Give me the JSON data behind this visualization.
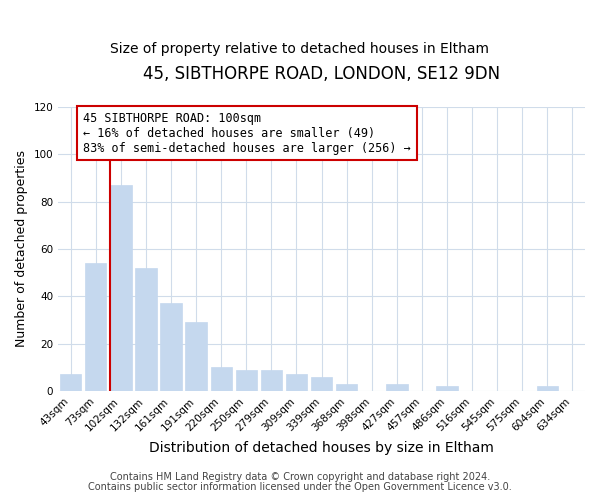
{
  "title": "45, SIBTHORPE ROAD, LONDON, SE12 9DN",
  "subtitle": "Size of property relative to detached houses in Eltham",
  "xlabel": "Distribution of detached houses by size in Eltham",
  "ylabel": "Number of detached properties",
  "bar_labels": [
    "43sqm",
    "73sqm",
    "102sqm",
    "132sqm",
    "161sqm",
    "191sqm",
    "220sqm",
    "250sqm",
    "279sqm",
    "309sqm",
    "339sqm",
    "368sqm",
    "398sqm",
    "427sqm",
    "457sqm",
    "486sqm",
    "516sqm",
    "545sqm",
    "575sqm",
    "604sqm",
    "634sqm"
  ],
  "bar_values": [
    7,
    54,
    87,
    52,
    37,
    29,
    10,
    9,
    9,
    7,
    6,
    3,
    0,
    3,
    0,
    2,
    0,
    0,
    0,
    2,
    0
  ],
  "bar_color": "#c5d8ee",
  "bar_edge_color": "#c5d8ee",
  "vline_color": "#cc0000",
  "annotation_line1": "45 SIBTHORPE ROAD: 100sqm",
  "annotation_line2": "← 16% of detached houses are smaller (49)",
  "annotation_line3": "83% of semi-detached houses are larger (256) →",
  "annotation_box_edgecolor": "#cc0000",
  "annotation_box_facecolor": "#ffffff",
  "ylim": [
    0,
    120
  ],
  "yticks": [
    0,
    20,
    40,
    60,
    80,
    100,
    120
  ],
  "footer_line1": "Contains HM Land Registry data © Crown copyright and database right 2024.",
  "footer_line2": "Contains public sector information licensed under the Open Government Licence v3.0.",
  "background_color": "#ffffff",
  "grid_color": "#d0dcea",
  "title_fontsize": 12,
  "subtitle_fontsize": 10,
  "xlabel_fontsize": 10,
  "ylabel_fontsize": 9,
  "tick_fontsize": 7.5,
  "annotation_fontsize": 8.5,
  "footer_fontsize": 7
}
